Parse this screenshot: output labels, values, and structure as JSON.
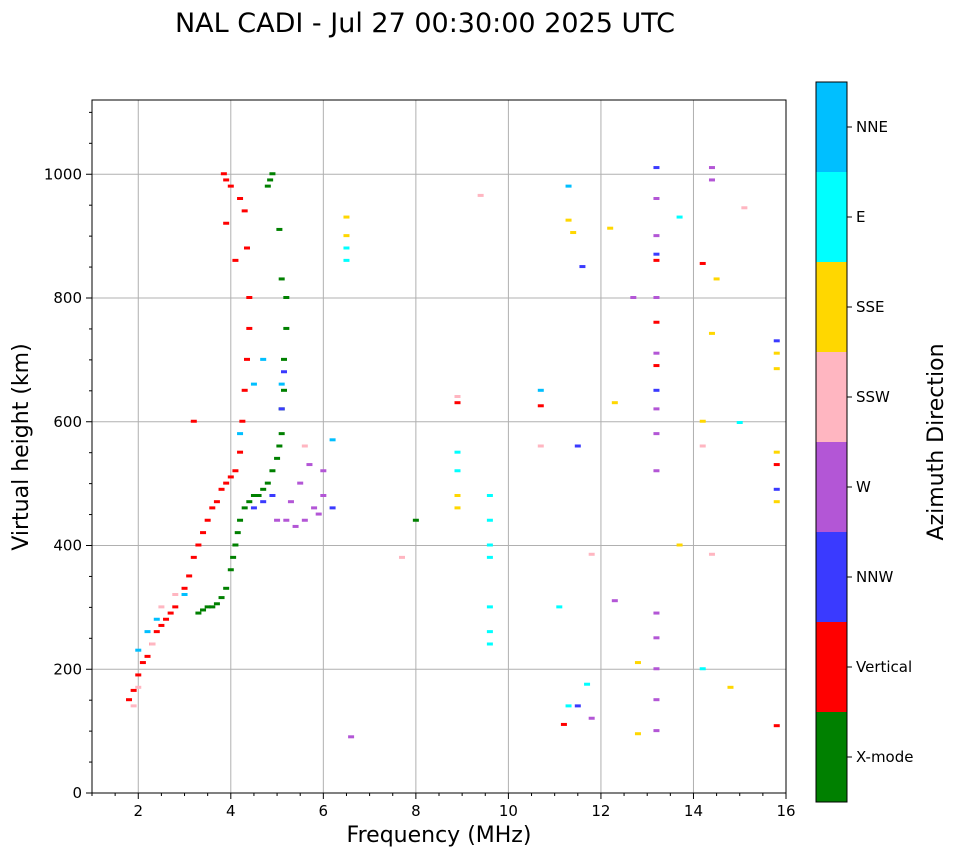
{
  "chart_data": {
    "type": "scatter",
    "title": "NAL CADI - Jul 27 00:30:00 2025 UTC",
    "xlabel": "Frequency (MHz)",
    "ylabel": "Virtual height (km)",
    "xlim": [
      1,
      16
    ],
    "ylim": [
      0,
      1120
    ],
    "xticks": [
      2,
      4,
      6,
      8,
      10,
      12,
      14,
      16
    ],
    "yticks": [
      0,
      200,
      400,
      600,
      800,
      1000
    ],
    "grid": true,
    "colorbar": {
      "title": "Azimuth Direction",
      "categories": [
        {
          "name": "X-mode",
          "color": "#008000"
        },
        {
          "name": "Vertical",
          "color": "#ff0000"
        },
        {
          "name": "NNW",
          "color": "#3a3aff"
        },
        {
          "name": "W",
          "color": "#b356d6"
        },
        {
          "name": "SSW",
          "color": "#ffb6c1"
        },
        {
          "name": "SSE",
          "color": "#ffd700"
        },
        {
          "name": "E",
          "color": "#00ffff"
        },
        {
          "name": "NNE",
          "color": "#00bfff"
        }
      ]
    },
    "series": [
      {
        "name": "X-mode",
        "points": [
          [
            3.3,
            290
          ],
          [
            3.4,
            295
          ],
          [
            3.5,
            300
          ],
          [
            3.6,
            300
          ],
          [
            3.7,
            305
          ],
          [
            3.8,
            315
          ],
          [
            3.9,
            330
          ],
          [
            4.0,
            360
          ],
          [
            4.05,
            380
          ],
          [
            4.1,
            400
          ],
          [
            4.15,
            420
          ],
          [
            4.2,
            440
          ],
          [
            4.3,
            460
          ],
          [
            4.4,
            470
          ],
          [
            4.5,
            480
          ],
          [
            4.6,
            480
          ],
          [
            4.7,
            490
          ],
          [
            4.8,
            500
          ],
          [
            4.9,
            520
          ],
          [
            5.0,
            540
          ],
          [
            5.05,
            560
          ],
          [
            5.1,
            580
          ],
          [
            5.1,
            620
          ],
          [
            5.15,
            650
          ],
          [
            5.15,
            700
          ],
          [
            5.2,
            750
          ],
          [
            5.2,
            800
          ],
          [
            5.1,
            830
          ],
          [
            5.05,
            910
          ],
          [
            4.8,
            980
          ],
          [
            4.85,
            990
          ],
          [
            4.9,
            1000
          ],
          [
            8.0,
            440
          ]
        ]
      },
      {
        "name": "Vertical",
        "points": [
          [
            1.8,
            150
          ],
          [
            1.9,
            165
          ],
          [
            2.0,
            190
          ],
          [
            2.1,
            210
          ],
          [
            2.2,
            220
          ],
          [
            2.3,
            240
          ],
          [
            2.4,
            260
          ],
          [
            2.5,
            270
          ],
          [
            2.6,
            280
          ],
          [
            2.7,
            290
          ],
          [
            2.8,
            300
          ],
          [
            3.0,
            330
          ],
          [
            3.1,
            350
          ],
          [
            3.2,
            380
          ],
          [
            3.3,
            400
          ],
          [
            3.4,
            420
          ],
          [
            3.5,
            440
          ],
          [
            3.6,
            460
          ],
          [
            3.7,
            470
          ],
          [
            3.8,
            490
          ],
          [
            3.9,
            500
          ],
          [
            4.0,
            510
          ],
          [
            4.1,
            520
          ],
          [
            4.2,
            550
          ],
          [
            4.25,
            600
          ],
          [
            4.3,
            650
          ],
          [
            4.35,
            700
          ],
          [
            4.4,
            750
          ],
          [
            4.4,
            800
          ],
          [
            4.35,
            880
          ],
          [
            4.3,
            940
          ],
          [
            4.2,
            960
          ],
          [
            4.0,
            980
          ],
          [
            3.9,
            990
          ],
          [
            3.85,
            1000
          ],
          [
            3.9,
            920
          ],
          [
            4.1,
            860
          ],
          [
            3.2,
            600
          ],
          [
            8.9,
            630
          ],
          [
            10.7,
            625
          ],
          [
            13.2,
            690
          ],
          [
            13.2,
            760
          ],
          [
            13.2,
            860
          ],
          [
            14.2,
            855
          ],
          [
            15.8,
            530
          ],
          [
            15.8,
            108
          ],
          [
            11.2,
            110
          ]
        ]
      },
      {
        "name": "NNW",
        "points": [
          [
            4.5,
            460
          ],
          [
            4.7,
            470
          ],
          [
            4.9,
            480
          ],
          [
            5.1,
            620
          ],
          [
            5.15,
            680
          ],
          [
            6.2,
            460
          ],
          [
            11.6,
            850
          ],
          [
            13.2,
            870
          ],
          [
            13.2,
            650
          ],
          [
            13.2,
            1010
          ],
          [
            15.8,
            730
          ],
          [
            15.8,
            490
          ],
          [
            11.5,
            560
          ],
          [
            11.5,
            140
          ]
        ]
      },
      {
        "name": "W",
        "points": [
          [
            5.0,
            440
          ],
          [
            5.2,
            440
          ],
          [
            5.4,
            430
          ],
          [
            5.6,
            440
          ],
          [
            5.8,
            460
          ],
          [
            6.0,
            480
          ],
          [
            6.0,
            520
          ],
          [
            5.5,
            500
          ],
          [
            5.7,
            530
          ],
          [
            5.3,
            470
          ],
          [
            5.9,
            450
          ],
          [
            13.2,
            100
          ],
          [
            13.2,
            150
          ],
          [
            13.2,
            200
          ],
          [
            13.2,
            250
          ],
          [
            13.2,
            290
          ],
          [
            13.2,
            520
          ],
          [
            13.2,
            580
          ],
          [
            13.2,
            620
          ],
          [
            13.2,
            710
          ],
          [
            13.2,
            800
          ],
          [
            13.2,
            900
          ],
          [
            13.2,
            960
          ],
          [
            14.4,
            990
          ],
          [
            14.4,
            1010
          ],
          [
            12.7,
            800
          ],
          [
            12.3,
            310
          ],
          [
            6.6,
            90
          ],
          [
            11.8,
            120
          ]
        ]
      },
      {
        "name": "SSW",
        "points": [
          [
            1.9,
            140
          ],
          [
            2.0,
            170
          ],
          [
            2.3,
            240
          ],
          [
            2.5,
            300
          ],
          [
            2.8,
            320
          ],
          [
            5.6,
            560
          ],
          [
            8.9,
            640
          ],
          [
            9.4,
            965
          ],
          [
            10.7,
            560
          ],
          [
            11.8,
            385
          ],
          [
            14.4,
            385
          ],
          [
            15.1,
            945
          ],
          [
            14.2,
            560
          ],
          [
            7.7,
            380
          ]
        ]
      },
      {
        "name": "SSE",
        "points": [
          [
            6.5,
            900
          ],
          [
            6.5,
            930
          ],
          [
            8.9,
            460
          ],
          [
            8.9,
            480
          ],
          [
            11.3,
            925
          ],
          [
            11.4,
            905
          ],
          [
            12.2,
            912
          ],
          [
            12.3,
            630
          ],
          [
            12.8,
            95
          ],
          [
            12.8,
            210
          ],
          [
            14.2,
            600
          ],
          [
            14.4,
            742
          ],
          [
            14.5,
            830
          ],
          [
            14.8,
            170
          ],
          [
            15.8,
            470
          ],
          [
            15.8,
            550
          ],
          [
            15.8,
            710
          ],
          [
            15.8,
            685
          ],
          [
            13.7,
            400
          ]
        ]
      },
      {
        "name": "E",
        "points": [
          [
            9.6,
            480
          ],
          [
            9.6,
            440
          ],
          [
            9.6,
            400
          ],
          [
            9.6,
            380
          ],
          [
            9.6,
            300
          ],
          [
            9.6,
            260
          ],
          [
            9.6,
            240
          ],
          [
            8.9,
            520
          ],
          [
            8.9,
            550
          ],
          [
            6.5,
            860
          ],
          [
            6.5,
            880
          ],
          [
            11.3,
            140
          ],
          [
            11.7,
            175
          ],
          [
            13.7,
            930
          ],
          [
            15.0,
            598
          ],
          [
            11.1,
            300
          ],
          [
            14.2,
            200
          ]
        ]
      },
      {
        "name": "NNE",
        "points": [
          [
            2.0,
            230
          ],
          [
            2.2,
            260
          ],
          [
            2.4,
            280
          ],
          [
            3.0,
            320
          ],
          [
            4.2,
            580
          ],
          [
            4.5,
            660
          ],
          [
            4.7,
            700
          ],
          [
            5.1,
            660
          ],
          [
            11.3,
            980
          ],
          [
            10.7,
            650
          ],
          [
            6.2,
            570
          ]
        ]
      }
    ]
  }
}
